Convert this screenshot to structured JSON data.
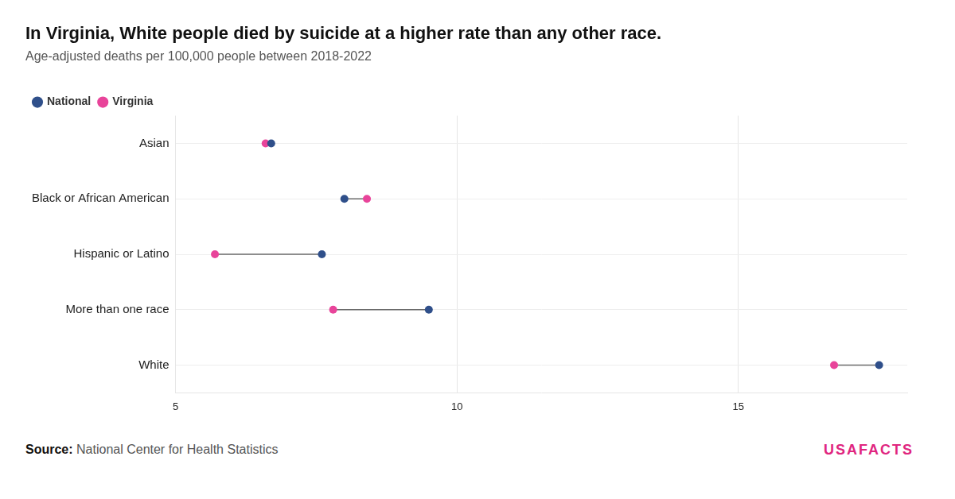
{
  "chart_data": {
    "type": "dumbbell",
    "title": "In Virginia, White people died by suicide at a higher rate than any other race.",
    "subtitle": "Age-adjusted deaths per 100,000 people between 2018-2022",
    "categories": [
      "Asian",
      "Black or African American",
      "Hispanic or Latino",
      "More than one race",
      "White"
    ],
    "series": [
      {
        "name": "National",
        "color": "#2f4f8a",
        "values": [
          6.7,
          8.0,
          7.6,
          9.5,
          17.5
        ]
      },
      {
        "name": "Virginia",
        "color": "#e8449a",
        "values": [
          6.6,
          8.4,
          5.7,
          7.8,
          16.7
        ]
      }
    ],
    "orientation": "horizontal",
    "xlim": [
      5,
      18
    ],
    "xticks": [
      5,
      10,
      15
    ],
    "grid": true,
    "legend": "top-left",
    "source_label": "Source:",
    "source": "National Center for Health Statistics",
    "logo": "USAFACTS"
  }
}
